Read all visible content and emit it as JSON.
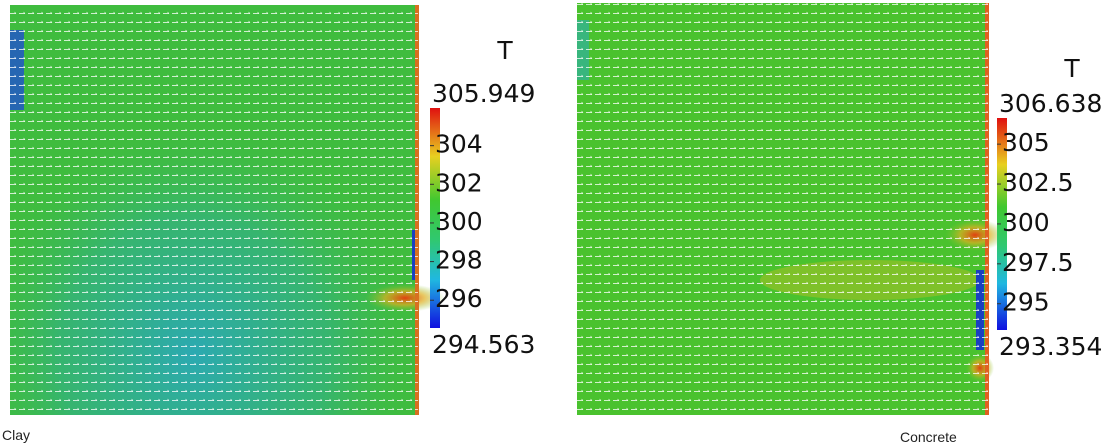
{
  "panels": [
    {
      "caption": "Clay",
      "colorbar": {
        "title": "T",
        "max": 305.949,
        "min": 294.563,
        "ticks": [
          304,
          302,
          300,
          298,
          296
        ]
      }
    },
    {
      "caption": "Concrete",
      "colorbar": {
        "title": "T",
        "max": 306.638,
        "min": 293.354,
        "ticks": [
          305,
          302.5,
          300,
          297.5,
          295
        ]
      }
    }
  ]
}
